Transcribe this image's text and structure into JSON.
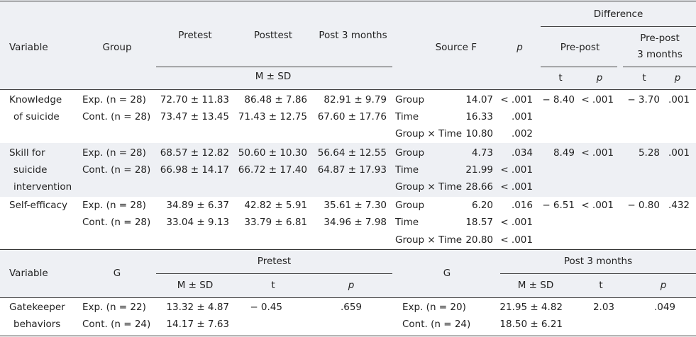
{
  "table1": {
    "headers": {
      "variable": "Variable",
      "group": "Group",
      "pretest": "Pretest",
      "posttest": "Posttest",
      "post3": "Post 3 months",
      "source": "Source F",
      "p": "p",
      "difference": "Difference",
      "prepost": "Pre-post",
      "prepost3_line1": "Pre-post",
      "prepost3_line2": "3 months",
      "msd": "M ± SD",
      "t": "t",
      "p2": "p",
      "t2": "t",
      "p3": "p"
    },
    "rows": [
      {
        "variable": [
          "Knowledge",
          "of suicide"
        ],
        "groups": [
          {
            "name": "Exp. (n = 28)",
            "pre": "72.70 ± 11.83",
            "post": "86.48 ±  7.86",
            "post3": "82.91 ±  9.79"
          },
          {
            "name": "Cont. (n = 28)",
            "pre": "73.47 ± 13.45",
            "post": "71.43 ± 12.75",
            "post3": "67.60 ± 17.76"
          }
        ],
        "sources": [
          {
            "source": "Group",
            "f": "14.07",
            "p": "< .001"
          },
          {
            "source": "Time",
            "f": "16.33",
            "p": ".001"
          },
          {
            "source": "Group × Time",
            "f": "10.80",
            "p": ".002"
          }
        ],
        "prepost_t": "− 8.40",
        "prepost_p": "< .001",
        "pp3_t": "− 3.70",
        "pp3_p": ".001"
      },
      {
        "variable": [
          "Skill for",
          "suicide",
          "intervention"
        ],
        "groups": [
          {
            "name": "Exp. (n = 28)",
            "pre": "68.57 ± 12.82",
            "post": "50.60 ± 10.30",
            "post3": "56.64 ± 12.55"
          },
          {
            "name": "Cont. (n = 28)",
            "pre": "66.98 ± 14.17",
            "post": "66.72 ± 17.40",
            "post3": "64.87 ± 17.93"
          }
        ],
        "sources": [
          {
            "source": "Group",
            "f": "4.73",
            "p": ".034"
          },
          {
            "source": "Time",
            "f": "21.99",
            "p": "< .001"
          },
          {
            "source": "Group × Time",
            "f": "28.66",
            "p": "< .001"
          }
        ],
        "prepost_t": "8.49",
        "prepost_p": "< .001",
        "pp3_t": "5.28",
        "pp3_p": ".001"
      },
      {
        "variable": [
          "Self-efficacy"
        ],
        "groups": [
          {
            "name": "Exp. (n = 28)",
            "pre": "34.89 ±  6.37",
            "post": "42.82 ±  5.91",
            "post3": "35.61 ±  7.30"
          },
          {
            "name": "Cont. (n = 28)",
            "pre": "33.04 ±  9.13",
            "post": "33.79 ±  6.81",
            "post3": "34.96 ±  7.98"
          }
        ],
        "sources": [
          {
            "source": "Group",
            "f": "6.20",
            "p": ".016"
          },
          {
            "source": "Time",
            "f": "18.57",
            "p": "< .001"
          },
          {
            "source": "Group × Time",
            "f": "20.80",
            "p": "< .001"
          }
        ],
        "prepost_t": "− 6.51",
        "prepost_p": "< .001",
        "pp3_t": "− 0.80",
        "pp3_p": ".432"
      }
    ]
  },
  "table2": {
    "headers": {
      "variable": "Variable",
      "g1": "G",
      "pretest": "Pretest",
      "msd1": "M ± SD",
      "t1": "t",
      "p1": "p",
      "g2": "G",
      "post3": "Post 3 months",
      "msd2": "M ± SD",
      "t2": "t",
      "p2": "p"
    },
    "row": {
      "variable": [
        "Gatekeeper",
        "behaviors"
      ],
      "pre_groups": [
        {
          "name": "Exp. (n = 22)",
          "msd": "13.32 ±  4.87"
        },
        {
          "name": "Cont. (n = 24)",
          "msd": "14.17 ±  7.63"
        }
      ],
      "pre_t": "− 0.45",
      "pre_p": ".659",
      "post_groups": [
        {
          "name": "Exp. (n = 20)",
          "msd": "21.95 ± 4.82"
        },
        {
          "name": "Cont. (n = 24)",
          "msd": "18.50 ± 6.21"
        }
      ],
      "post_t": "2.03",
      "post_p": ".049"
    }
  }
}
